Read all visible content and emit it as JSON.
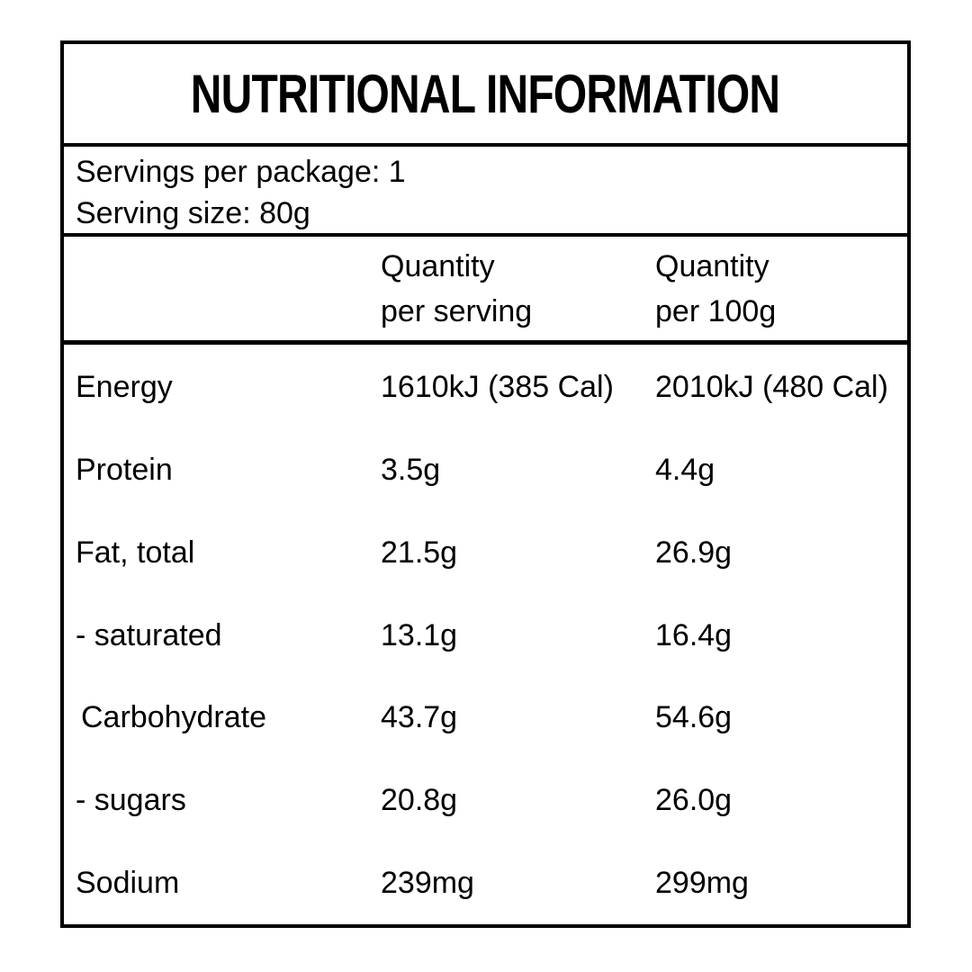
{
  "label": {
    "title": "NUTRITIONAL INFORMATION",
    "servings": {
      "per_package_line": "Servings per package: 1",
      "serving_size_line": "Serving size: 80g"
    },
    "columns": {
      "per_serving_line1": "Quantity",
      "per_serving_line2": "per serving",
      "per_100g_line1": "Quantity",
      "per_100g_line2": "per 100g"
    },
    "rows": [
      {
        "name": "Energy",
        "per_serving": "1610kJ (385 Cal)",
        "per_100g": "2010kJ (480 Cal)"
      },
      {
        "name": "Protein",
        "per_serving": "3.5g",
        "per_100g": "4.4g"
      },
      {
        "name": "Fat, total",
        "per_serving": "21.5g",
        "per_100g": "26.9g"
      },
      {
        "name": "- saturated",
        "per_serving": "13.1g",
        "per_100g": "16.4g"
      },
      {
        "name": "Carbohydrate",
        "per_serving": "43.7g",
        "per_100g": "54.6g"
      },
      {
        "name": "- sugars",
        "per_serving": "20.8g",
        "per_100g": "26.0g"
      },
      {
        "name": "Sodium",
        "per_serving": "239mg",
        "per_100g": "299mg"
      }
    ],
    "colors": {
      "border": "#000000",
      "text": "#000000",
      "background": "#ffffff"
    }
  }
}
